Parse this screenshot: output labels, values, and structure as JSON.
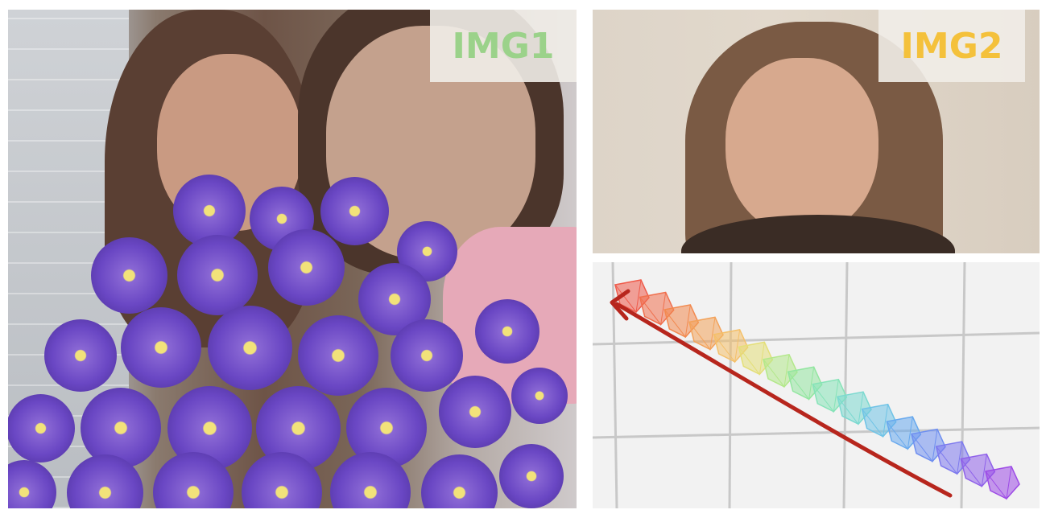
{
  "panels": {
    "img1": {
      "label": "IMG1",
      "label_color": "#9bd28a"
    },
    "img2": {
      "label": "IMG2",
      "label_color": "#f4c13b"
    }
  },
  "plot": {
    "arrow_color": "#b7261d",
    "camera_colors": [
      "#ef5a4a",
      "#f0704e",
      "#f2894f",
      "#f3a25a",
      "#f4c06a",
      "#e4df78",
      "#b3e88a",
      "#93e6a0",
      "#86e3b8",
      "#7bd9d0",
      "#6fc3e6",
      "#68a9ee",
      "#6f8ff0",
      "#7d79ee",
      "#8f61ea",
      "#9d4be6"
    ]
  }
}
